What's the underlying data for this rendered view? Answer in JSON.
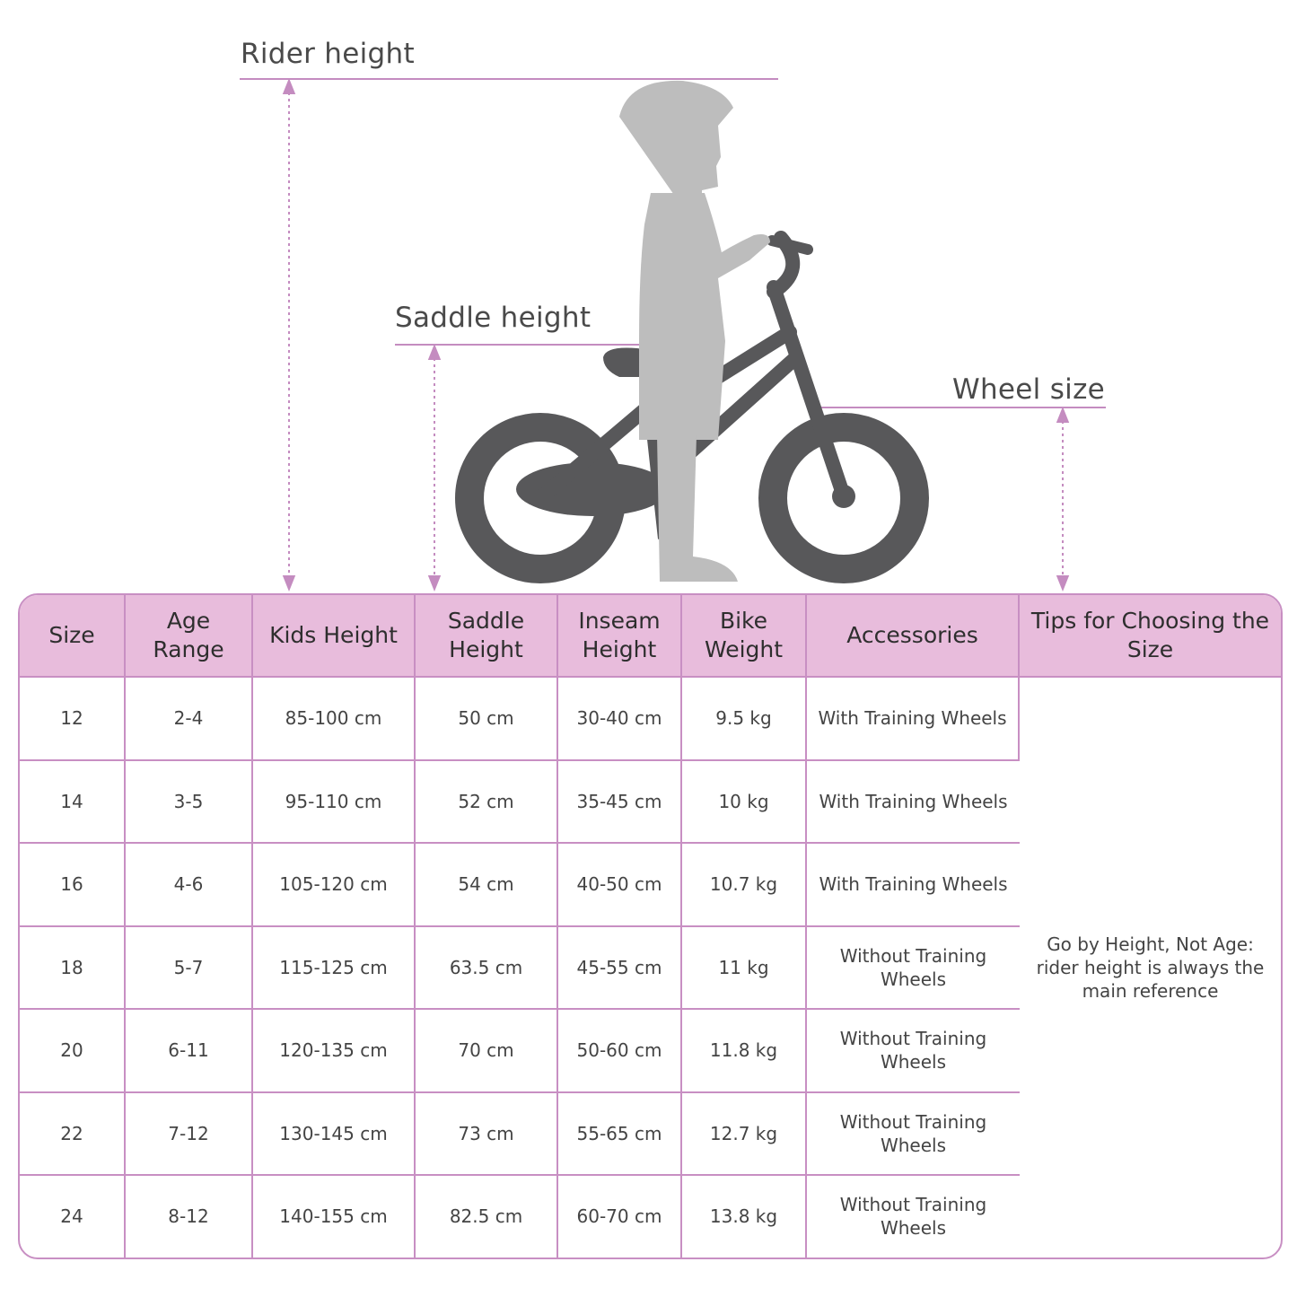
{
  "labels": {
    "rider_height": "Rider height",
    "saddle_height": "Saddle height",
    "wheel_size": "Wheel size"
  },
  "colors": {
    "accent_line": "#c48cc0",
    "header_bg": "#e8bcdc",
    "bike": "#58585a",
    "child": "#bdbdbd"
  },
  "table": {
    "headers": [
      "Size",
      "Age Range",
      "Kids Height",
      "Saddle Height",
      "Inseam Height",
      "Bike Weight",
      "Accessories",
      "Tips for Choosing the Size"
    ],
    "rows": [
      [
        "12",
        "2-4",
        "85-100 cm",
        "50 cm",
        "30-40 cm",
        "9.5 kg",
        "With Training Wheels"
      ],
      [
        "14",
        "3-5",
        "95-110 cm",
        "52 cm",
        "35-45 cm",
        "10 kg",
        "With Training Wheels"
      ],
      [
        "16",
        "4-6",
        "105-120 cm",
        "54 cm",
        "40-50 cm",
        "10.7 kg",
        "With Training Wheels"
      ],
      [
        "18",
        "5-7",
        "115-125 cm",
        "63.5 cm",
        "45-55 cm",
        "11 kg",
        "Without Training Wheels"
      ],
      [
        "20",
        "6-11",
        "120-135 cm",
        "70 cm",
        "50-60 cm",
        "11.8 kg",
        "Without Training Wheels"
      ],
      [
        "22",
        "7-12",
        "130-145 cm",
        "73 cm",
        "55-65 cm",
        "12.7 kg",
        "Without Training Wheels"
      ],
      [
        "24",
        "8-12",
        "140-155 cm",
        "82.5 cm",
        "60-70 cm",
        "13.8 kg",
        "Without Training Wheels"
      ]
    ],
    "tip": "Go by Height, Not Age: rider height is always the main reference"
  }
}
